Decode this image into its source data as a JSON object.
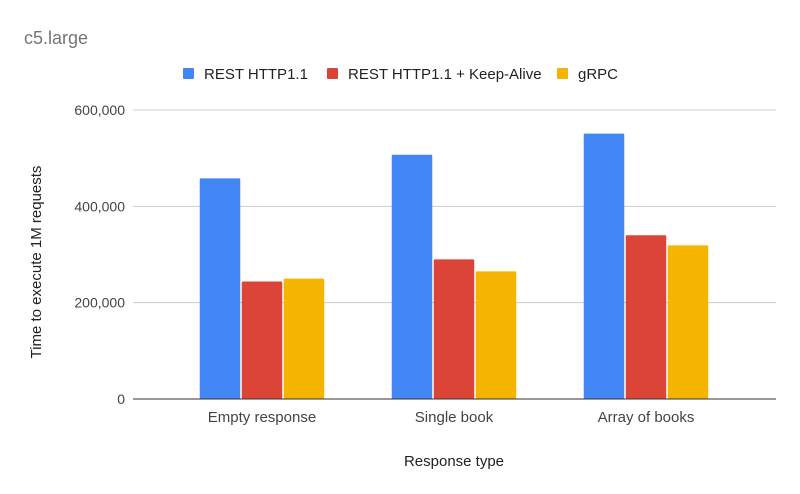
{
  "chart_data": {
    "type": "bar",
    "title": "c5.large",
    "xlabel": "Response type",
    "ylabel": "Time to execute 1M requests",
    "categories": [
      "Empty response",
      "Single book",
      "Array of books"
    ],
    "series": [
      {
        "name": "REST HTTP1.1",
        "color": "#4285f4",
        "values": [
          458000,
          507000,
          551000
        ]
      },
      {
        "name": "REST HTTP1.1 + Keep-Alive",
        "color": "#db4437",
        "values": [
          244000,
          290000,
          340000
        ]
      },
      {
        "name": "gRPC",
        "color": "#f4b400",
        "values": [
          250000,
          265000,
          319000
        ]
      }
    ],
    "ylim": [
      0,
      600000
    ],
    "yticks": [
      0,
      200000,
      400000,
      600000
    ],
    "ytick_labels": [
      "0",
      "200,000",
      "400,000",
      "600,000"
    ],
    "grid": true,
    "legend_position": "top"
  }
}
